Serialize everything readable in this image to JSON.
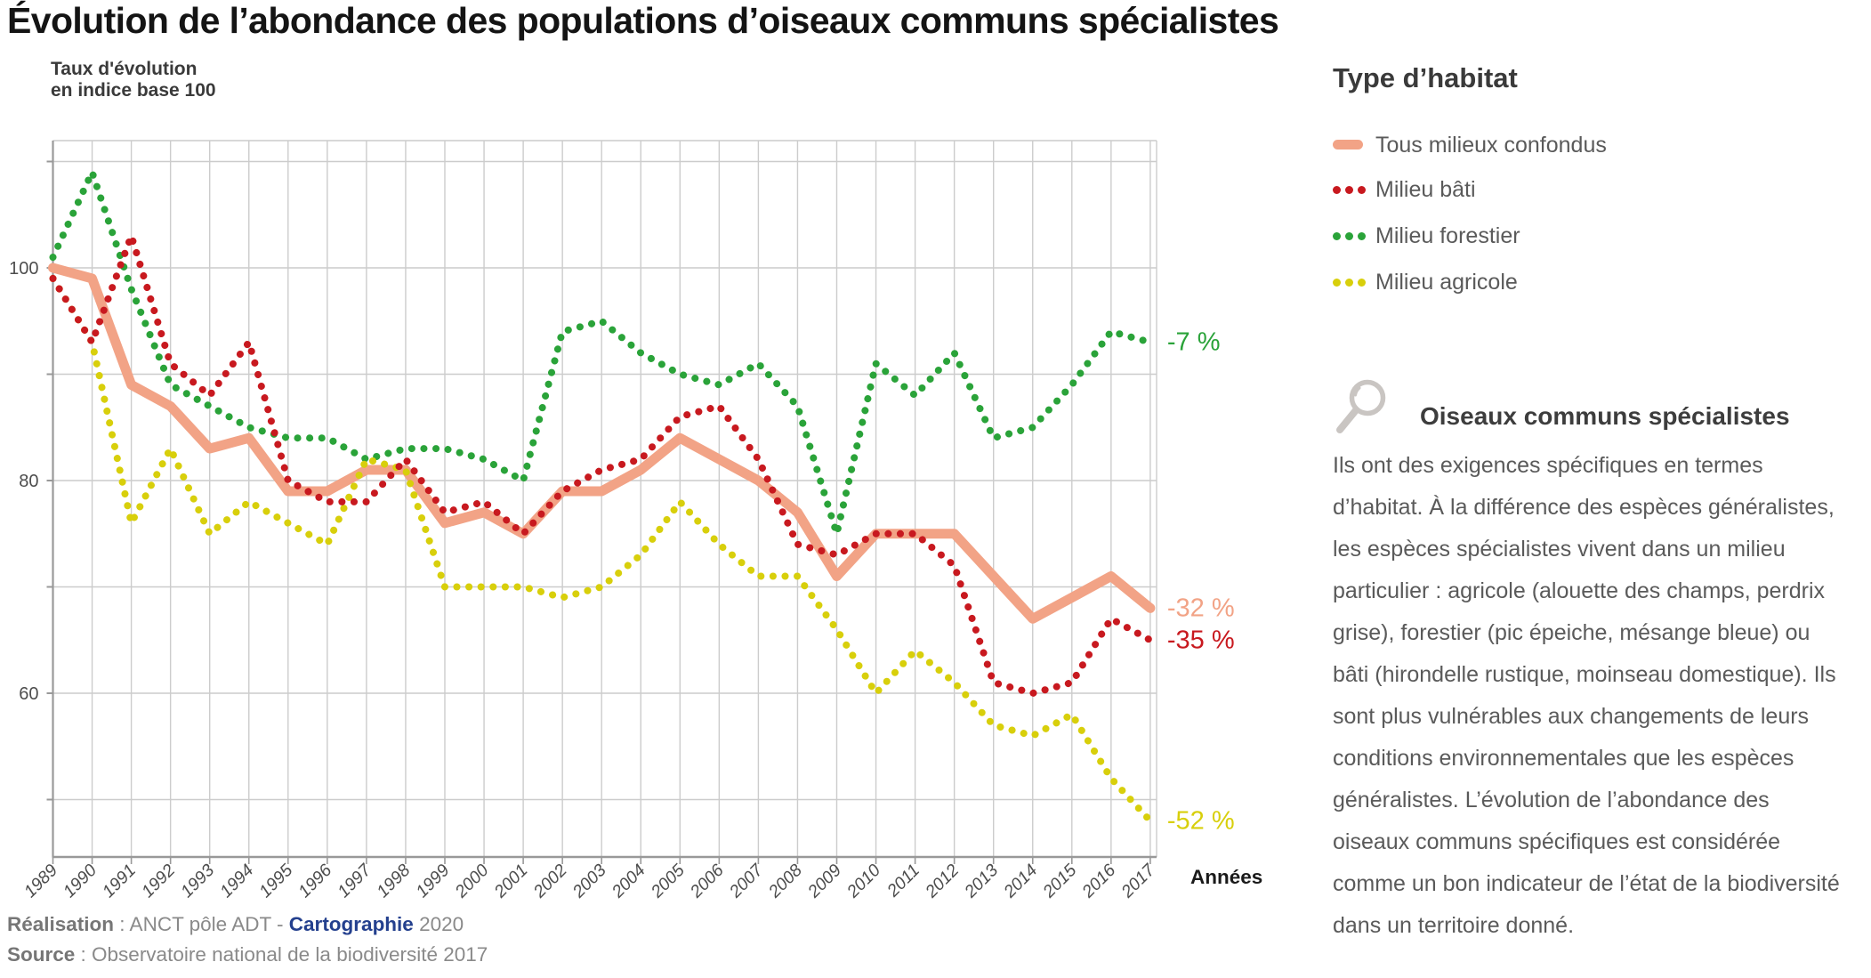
{
  "title": "Évolution de l’abondance des populations d’oiseaux communs spécialistes",
  "axis": {
    "y_title_line1": "Taux d'évolution",
    "y_title_line2": "en indice base 100",
    "x_title": "Années",
    "y_tick_labels": [
      100,
      80,
      60
    ],
    "y_minor_ticks": [
      110,
      90,
      70,
      50
    ]
  },
  "legend": {
    "title": "Type d’habitat",
    "items": [
      {
        "label": "Tous milieux confondus",
        "color": "#f2a386",
        "style": "solid"
      },
      {
        "label": "Milieu bâti",
        "color": "#c8191f",
        "style": "dotted"
      },
      {
        "label": "Milieu forestier",
        "color": "#2aa339",
        "style": "dotted"
      },
      {
        "label": "Milieu agricole",
        "color": "#d8cf0b",
        "style": "dotted"
      }
    ]
  },
  "info": {
    "icon": "magnifier-icon",
    "heading": "Oiseaux communs spécialistes",
    "body": "Ils ont des exigences spécifiques en termes d’habitat. À la différence des espèces généralistes, les espèces spécialistes vivent dans un milieu particulier : agricole (alouette des champs, perdrix grise), forestier (pic épeiche, mésange bleue) ou bâti (hirondelle rustique, moinseau domestique). Ils sont plus vulnérables aux changements de leurs conditions environnementales que les espèces généralistes. L’évolution de l’abondance des oiseaux communs spécifiques est considérée comme un bon indicateur de l’état de la biodiversité dans un territoire donné."
  },
  "footer": {
    "realisation_label": "Réalisation",
    "realisation_text": " : ANCT pôle ADT - ",
    "cartographie": "Cartographie",
    "carto_year": " 2020",
    "source_label": "Source",
    "source_text": " : Observatoire national de la biodiversité 2017"
  },
  "chart_data": {
    "type": "line",
    "title": "Évolution de l’abondance des populations d’oiseaux communs spécialistes",
    "xlabel": "Années",
    "ylabel": "Taux d'évolution en indice base 100",
    "x": [
      1989,
      1990,
      1991,
      1992,
      1993,
      1994,
      1995,
      1996,
      1997,
      1998,
      1999,
      2000,
      2001,
      2002,
      2003,
      2004,
      2005,
      2006,
      2007,
      2008,
      2009,
      2010,
      2011,
      2012,
      2013,
      2014,
      2015,
      2016,
      2017
    ],
    "ylim": [
      45,
      112
    ],
    "gridlines_y": [
      110,
      100,
      90,
      80,
      70,
      60,
      50
    ],
    "grid": true,
    "legend_position": "top-right",
    "series": [
      {
        "name": "Tous milieux confondus",
        "color": "#f2a386",
        "style": "solid",
        "end_label": "-32 %",
        "values": [
          100,
          99,
          89,
          87,
          83,
          84,
          79,
          79,
          81,
          81,
          76,
          77,
          75,
          79,
          79,
          81,
          84,
          82,
          80,
          77,
          71,
          75,
          75,
          75,
          71,
          67,
          69,
          71,
          68
        ]
      },
      {
        "name": "Milieu bâti",
        "color": "#c8191f",
        "style": "dotted",
        "end_label": "-35 %",
        "values": [
          99,
          93,
          103,
          91,
          88,
          93,
          80,
          78,
          78,
          82,
          77,
          78,
          75,
          79,
          81,
          82,
          86,
          87,
          82,
          74,
          73,
          75,
          75,
          72,
          61,
          60,
          61,
          67,
          65
        ]
      },
      {
        "name": "Milieu forestier",
        "color": "#2aa339",
        "style": "dotted",
        "end_label": "-7 %",
        "values": [
          101,
          109,
          98,
          89,
          87,
          85,
          84,
          84,
          82,
          83,
          83,
          82,
          80,
          94,
          95,
          92,
          90,
          89,
          91,
          87,
          75,
          91,
          88,
          92,
          84,
          85,
          89,
          94,
          93
        ]
      },
      {
        "name": "Milieu agricole",
        "color": "#d8cf0b",
        "style": "dotted",
        "end_label": "-52 %",
        "values": [
          99,
          93,
          76,
          83,
          75,
          78,
          76,
          74,
          82,
          81,
          70,
          70,
          70,
          69,
          70,
          73,
          78,
          74,
          71,
          71,
          66,
          60,
          64,
          61,
          57,
          56,
          58,
          52,
          48
        ]
      }
    ]
  }
}
